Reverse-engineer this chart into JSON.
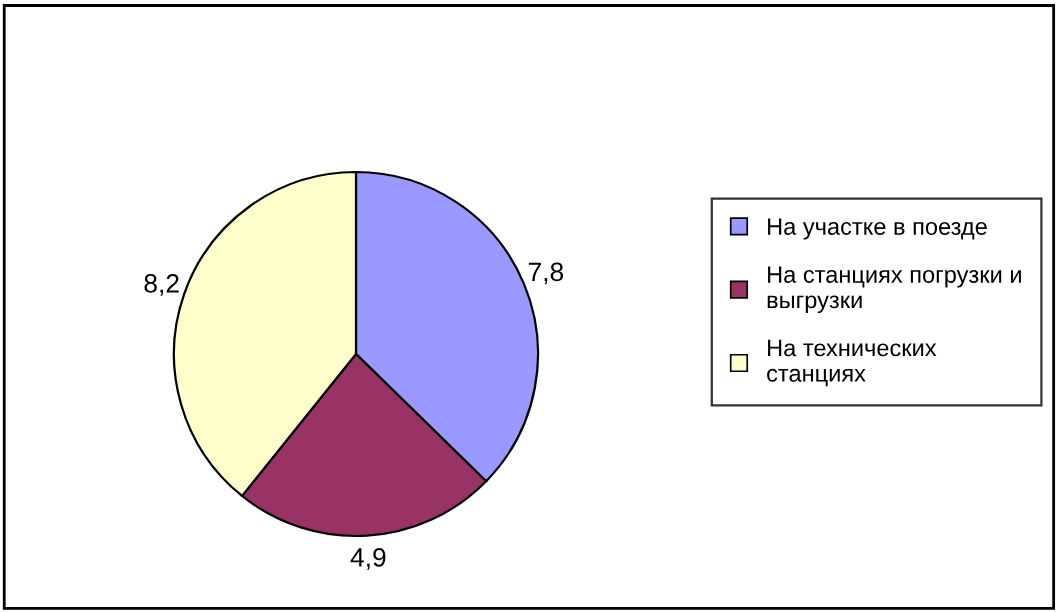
{
  "chart_data": {
    "type": "pie",
    "categories": [
      "На участке в поезде",
      "На станциях погрузки и выгрузки",
      "На технических станциях"
    ],
    "values": [
      7.8,
      4.9,
      8.2
    ],
    "value_labels": [
      "7,8",
      "4,9",
      "8,2"
    ],
    "colors": [
      "#9999ff",
      "#993366",
      "#ffffcc"
    ],
    "legend": "right"
  }
}
